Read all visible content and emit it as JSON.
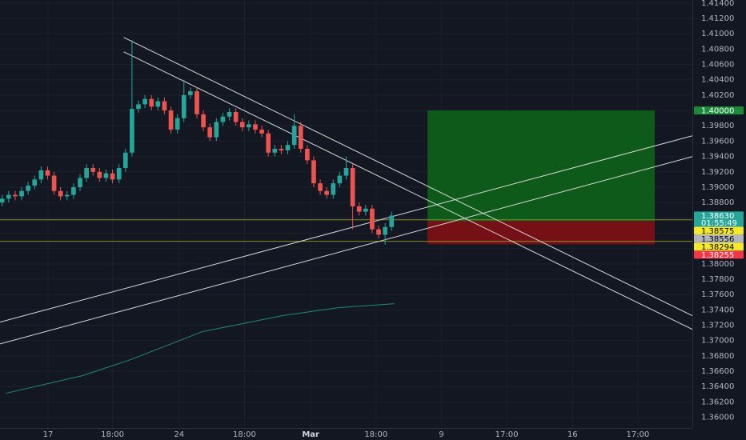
{
  "chart_data": {
    "type": "candlestick",
    "up_color": "#26a69a",
    "down_color": "#ef5350",
    "grid": true,
    "xlim": [
      -0.5,
      159.5
    ],
    "ylim": [
      1.3586,
      1.4144
    ],
    "xticks": [
      {
        "value": 10.6,
        "label": "17"
      },
      {
        "value": 25.5,
        "label": "18:00"
      },
      {
        "value": 40.9,
        "label": "24"
      },
      {
        "value": 56,
        "label": "18:00"
      },
      {
        "value": 71.3,
        "label": "Mar"
      },
      {
        "value": 86.4,
        "label": "18:00"
      },
      {
        "value": 101.5,
        "label": "9"
      },
      {
        "value": 116.6,
        "label": "17:00"
      },
      {
        "value": 131.8,
        "label": "16"
      },
      {
        "value": 146.9,
        "label": "17:00"
      }
    ],
    "yticks": [
      {
        "value": 1.36,
        "label": "1.36000"
      },
      {
        "value": 1.362,
        "label": "1.36200"
      },
      {
        "value": 1.364,
        "label": "1.36400"
      },
      {
        "value": 1.366,
        "label": "1.36600"
      },
      {
        "value": 1.368,
        "label": "1.36800"
      },
      {
        "value": 1.37,
        "label": "1.37000"
      },
      {
        "value": 1.372,
        "label": "1.37200"
      },
      {
        "value": 1.374,
        "label": "1.37400"
      },
      {
        "value": 1.376,
        "label": "1.37600"
      },
      {
        "value": 1.378,
        "label": "1.37800"
      },
      {
        "value": 1.38,
        "label": "1.38000"
      },
      {
        "value": 1.382,
        "label": "1.38200"
      },
      {
        "value": 1.384,
        "label": "1.38400"
      },
      {
        "value": 1.386,
        "label": "1.38600"
      },
      {
        "value": 1.388,
        "label": "1.38800"
      },
      {
        "value": 1.39,
        "label": "1.39000"
      },
      {
        "value": 1.392,
        "label": "1.39200"
      },
      {
        "value": 1.394,
        "label": "1.39400"
      },
      {
        "value": 1.396,
        "label": "1.39600"
      },
      {
        "value": 1.398,
        "label": "1.39800"
      },
      {
        "value": 1.4,
        "label": "1.40000"
      },
      {
        "value": 1.402,
        "label": "1.40200"
      },
      {
        "value": 1.404,
        "label": "1.40400"
      },
      {
        "value": 1.406,
        "label": "1.40600"
      },
      {
        "value": 1.408,
        "label": "1.40800"
      },
      {
        "value": 1.41,
        "label": "1.41000"
      },
      {
        "value": 1.412,
        "label": "1.41200"
      },
      {
        "value": 1.414,
        "label": "1.41400"
      }
    ],
    "x": [
      0,
      1.5,
      3,
      4.5,
      6,
      7.5,
      9,
      10.5,
      12,
      13.5,
      15,
      16.5,
      18,
      19.5,
      21,
      22.5,
      24,
      25.5,
      27,
      28.5,
      30,
      31.5,
      33,
      34.5,
      36,
      37.5,
      39,
      40.5,
      42,
      43.5,
      45,
      46.5,
      48,
      49.5,
      51,
      52.5,
      54,
      55.5,
      57,
      58.5,
      60,
      61.5,
      63,
      64.5,
      66,
      67.5,
      69,
      70.5,
      72,
      73.5,
      75,
      76.5,
      78,
      79.5,
      81,
      82.5,
      84,
      85.5,
      87,
      88.5,
      90
    ],
    "open": [
      1.388,
      1.3885,
      1.389,
      1.3888,
      1.3895,
      1.3902,
      1.391,
      1.3922,
      1.3915,
      1.3895,
      1.3888,
      1.389,
      1.39,
      1.3912,
      1.3925,
      1.392,
      1.3912,
      1.3918,
      1.391,
      1.3925,
      1.3945,
      1.4002,
      1.4008,
      1.4015,
      1.4005,
      1.4012,
      1.4,
      1.3975,
      1.399,
      1.402,
      1.4025,
      1.3995,
      1.3978,
      1.3965,
      1.3985,
      1.3992,
      1.3998,
      1.3985,
      1.3978,
      1.3982,
      1.3975,
      1.397,
      1.3945,
      1.395,
      1.3948,
      1.3955,
      1.398,
      1.395,
      1.3935,
      1.3905,
      1.3895,
      1.389,
      1.3905,
      1.3915,
      1.3925,
      1.3875,
      1.3868,
      1.3872,
      1.3845,
      1.3838,
      1.3848
    ],
    "high": [
      1.389,
      1.3895,
      1.3895,
      1.39,
      1.3907,
      1.3915,
      1.3927,
      1.3927,
      1.392,
      1.39,
      1.3895,
      1.3905,
      1.3917,
      1.393,
      1.393,
      1.3925,
      1.3923,
      1.3923,
      1.393,
      1.395,
      1.4092,
      1.4013,
      1.402,
      1.402,
      1.4017,
      1.4017,
      1.4005,
      1.3995,
      1.404,
      1.403,
      1.403,
      1.4,
      1.3983,
      1.399,
      1.3997,
      1.4003,
      1.4003,
      1.399,
      1.3987,
      1.3987,
      1.398,
      1.3975,
      1.3955,
      1.3955,
      1.396,
      1.3995,
      1.3985,
      1.3955,
      1.394,
      1.391,
      1.39,
      1.391,
      1.392,
      1.394,
      1.393,
      1.388,
      1.3877,
      1.3877,
      1.385,
      1.3853,
      1.3868
    ],
    "low": [
      1.3875,
      1.388,
      1.3883,
      1.3883,
      1.389,
      1.3897,
      1.3905,
      1.391,
      1.389,
      1.3883,
      1.3883,
      1.3885,
      1.3895,
      1.3907,
      1.3915,
      1.3907,
      1.3907,
      1.3905,
      1.3905,
      1.392,
      1.394,
      1.3997,
      1.4003,
      1.4,
      1.4,
      1.3995,
      1.397,
      1.397,
      1.3985,
      1.4015,
      1.399,
      1.3973,
      1.396,
      1.396,
      1.398,
      1.3987,
      1.398,
      1.3973,
      1.3973,
      1.397,
      1.3965,
      1.394,
      1.394,
      1.3943,
      1.3943,
      1.395,
      1.3945,
      1.393,
      1.39,
      1.389,
      1.3885,
      1.3885,
      1.39,
      1.391,
      1.3845,
      1.3863,
      1.3863,
      1.384,
      1.3833,
      1.3825,
      1.3843
    ],
    "close": [
      1.3885,
      1.389,
      1.3888,
      1.3895,
      1.3902,
      1.391,
      1.3922,
      1.3915,
      1.3895,
      1.3888,
      1.389,
      1.39,
      1.3912,
      1.3925,
      1.392,
      1.3912,
      1.3918,
      1.391,
      1.3925,
      1.3945,
      1.4002,
      1.4008,
      1.4015,
      1.4005,
      1.4012,
      1.4,
      1.3975,
      1.399,
      1.402,
      1.4025,
      1.3995,
      1.3978,
      1.3965,
      1.3985,
      1.3992,
      1.3998,
      1.3985,
      1.3978,
      1.3982,
      1.3975,
      1.397,
      1.3945,
      1.395,
      1.3948,
      1.3955,
      1.398,
      1.395,
      1.3935,
      1.3905,
      1.3895,
      1.389,
      1.3905,
      1.3915,
      1.3925,
      1.3875,
      1.3868,
      1.3872,
      1.3845,
      1.3838,
      1.3848,
      1.3863
    ],
    "moving_average": {
      "color": "#1f8a7a",
      "x": [
        0.9,
        18.5,
        29.6,
        46.2,
        64.7,
        77.6,
        90.6
      ],
      "values": [
        1.36313,
        1.36542,
        1.3675,
        1.37115,
        1.37324,
        1.37428,
        1.3748
      ]
    },
    "trend_lines": [
      {
        "color": "#d8d8d8",
        "x": [
          28.1,
          159.5
        ],
        "values": [
          1.40952,
          1.37324
        ]
      },
      {
        "color": "#d8d8d8",
        "x": [
          28.1,
          159.5
        ],
        "values": [
          1.40764,
          1.37146
        ]
      },
      {
        "color": "#d8d8d8",
        "x": [
          -0.5,
          159.5
        ],
        "values": [
          1.3724,
          1.3967
        ]
      },
      {
        "color": "#d8d8d8",
        "x": [
          -0.5,
          159.5
        ],
        "values": [
          1.36956,
          1.39398
        ]
      }
    ],
    "horizontal_lines": [
      {
        "value": 1.38575,
        "color": "#8a8a2a"
      },
      {
        "value": 1.38294,
        "color": "#8a8a2a"
      }
    ],
    "position": {
      "x_start": 98.3,
      "x_end": 150.8,
      "target": 1.4,
      "entry": 1.38556,
      "stop": 1.38255,
      "profit_color": "#0d5e1a",
      "loss_color": "#7a1116"
    },
    "price_labels": [
      {
        "value": 1.4,
        "label": "1.40000",
        "color": "#1b8a3a",
        "text_color": "#ffffff"
      },
      {
        "value": 1.3863,
        "label": "1.38630",
        "color": "#26a69a",
        "text_color": "#ffffff",
        "countdown": "01:55:49"
      },
      {
        "value": 1.38575,
        "label": "1.38575",
        "color": "#f5ea2a",
        "text_color": "#000000"
      },
      {
        "value": 1.38556,
        "label": "1.38556",
        "color": "#b2b5be",
        "text_color": "#000000"
      },
      {
        "value": 1.38294,
        "label": "1.38294",
        "color": "#f5ea2a",
        "text_color": "#000000"
      },
      {
        "value": 1.38255,
        "label": "1.38255",
        "color": "#f23645",
        "text_color": "#ffffff"
      }
    ]
  }
}
